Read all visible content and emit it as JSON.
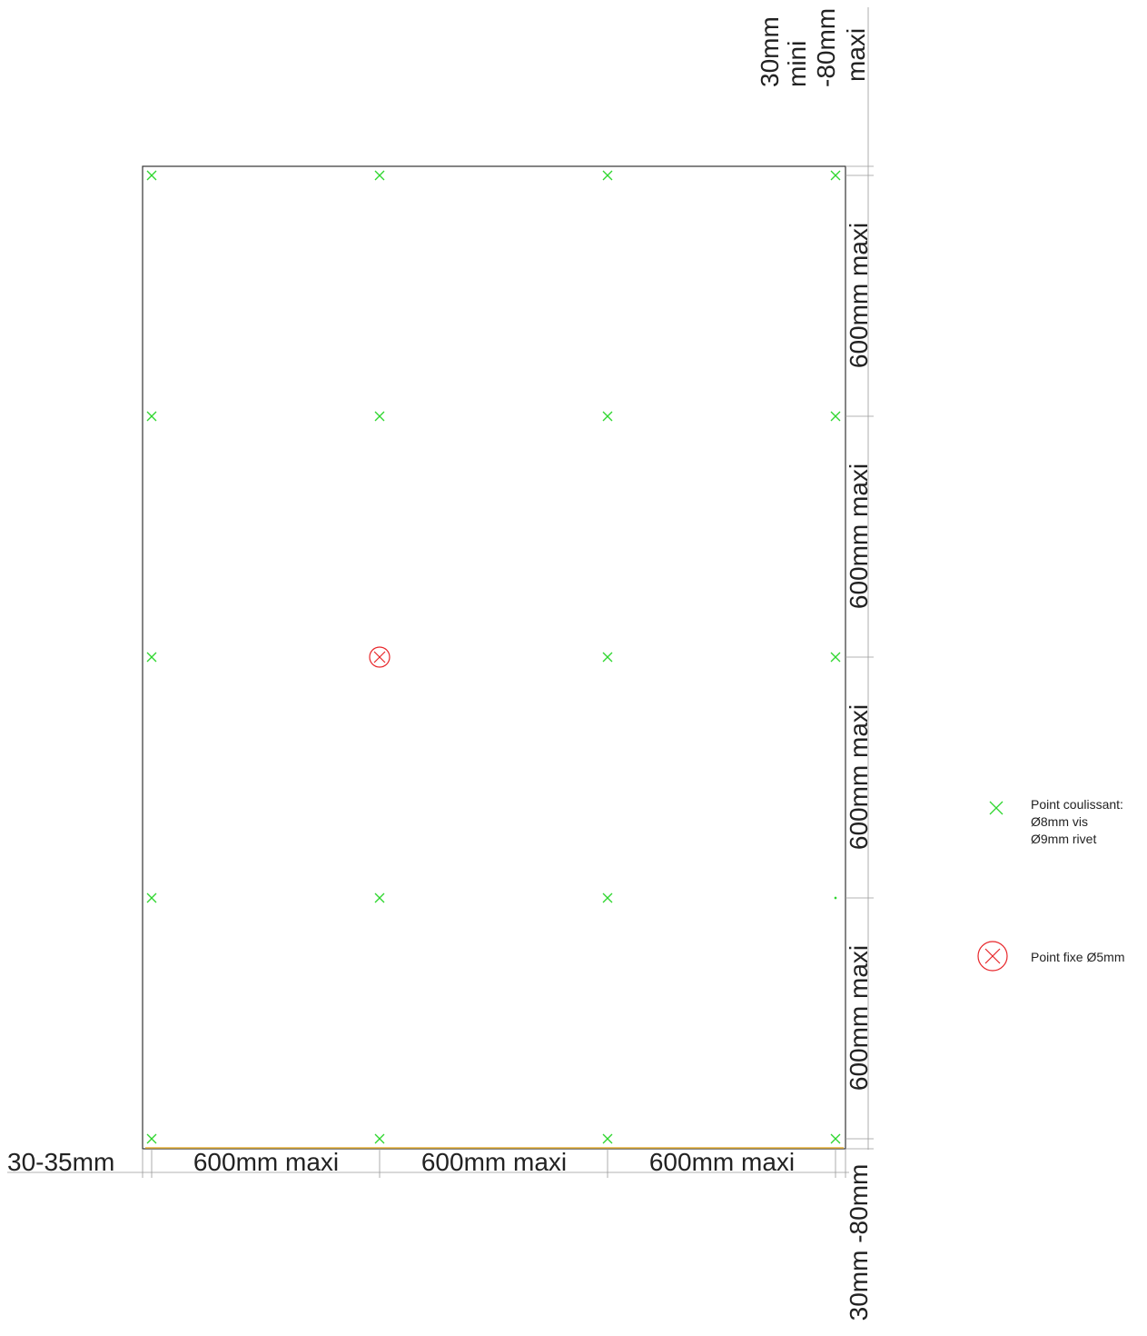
{
  "dimensions": {
    "top_edge_distance": [
      "30mm",
      "mini",
      "-80mm",
      "maxi"
    ],
    "bottom_edge_distance": "30mm -80mm",
    "side_edge_distance": "30-35mm",
    "horizontal_spacing": [
      "600mm maxi",
      "600mm maxi",
      "600mm maxi"
    ],
    "vertical_spacing": [
      "600mm maxi",
      "600mm maxi",
      "600mm maxi",
      "600mm maxi"
    ]
  },
  "legend": {
    "sliding_point": {
      "lines": [
        "Point coulissant:",
        "Ø8mm vis",
        "Ø9mm rivet"
      ],
      "color": "#2fd62f"
    },
    "fixed_point": {
      "label": "Point fixe Ø5mm",
      "color": "#e8262a"
    }
  }
}
